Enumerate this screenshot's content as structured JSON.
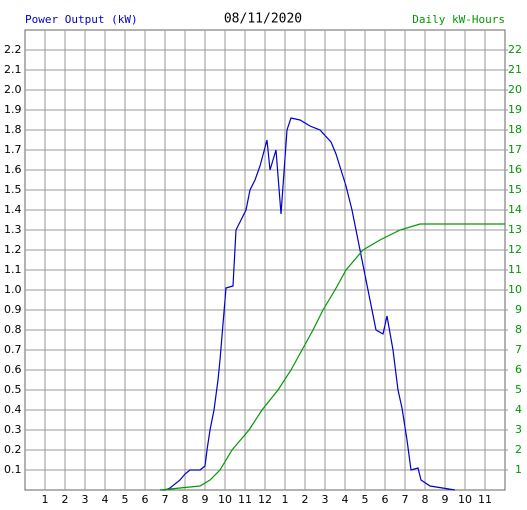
{
  "chart_data": {
    "type": "line",
    "title": "08/11/2020",
    "ylabel": "Power Output (kW)",
    "y2label": "Daily kW-Hours",
    "xlim": [
      0,
      24
    ],
    "xticks": [
      1,
      2,
      3,
      4,
      5,
      6,
      7,
      8,
      9,
      10,
      11,
      12,
      {
        "value": 13,
        "label": "1"
      },
      {
        "value": 14,
        "label": "2"
      },
      {
        "value": 15,
        "label": "3"
      },
      {
        "value": 16,
        "label": "4"
      },
      {
        "value": 17,
        "label": "5"
      },
      {
        "value": 18,
        "label": "6"
      },
      {
        "value": 19,
        "label": "7"
      },
      {
        "value": 20,
        "label": "8"
      },
      {
        "value": 21,
        "label": "9"
      },
      {
        "value": 22,
        "label": "10"
      },
      {
        "value": 23,
        "label": "11"
      }
    ],
    "ylim": [
      0,
      2.3
    ],
    "yticks": [
      0.1,
      0.2,
      0.3,
      0.4,
      0.5,
      0.6,
      0.7,
      0.8,
      0.9,
      {
        "value": 1,
        "label": "1.0"
      },
      1.1,
      1.2,
      1.3,
      1.4,
      1.5,
      1.6,
      1.7,
      1.8,
      1.9,
      {
        "value": 2,
        "label": "2.0"
      },
      2.1,
      2.2
    ],
    "y2lim": [
      0,
      23
    ],
    "y2ticks": [
      1,
      2,
      3,
      4,
      5,
      6,
      7,
      8,
      9,
      10,
      11,
      12,
      13,
      14,
      15,
      16,
      17,
      18,
      19,
      20,
      21,
      22
    ],
    "grid": true,
    "series": [
      {
        "name": "Power Output (kW)",
        "color": "#0000cc",
        "x": [
          6.75,
          7,
          7.25,
          7.75,
          8,
          8.25,
          8.75,
          9,
          9.1,
          9.25,
          9.45,
          9.65,
          9.75,
          10.05,
          10.4,
          10.55,
          10.8,
          11.05,
          11.25,
          11.5,
          11.75,
          12.1,
          12.25,
          12.55,
          12.8,
          13.1,
          13.3,
          13.75,
          14.25,
          14.75,
          15.3,
          15.55,
          15.8,
          16.05,
          16.35,
          16.75,
          17.05,
          17.35,
          17.55,
          17.9,
          18.1,
          18.4,
          18.65,
          18.85,
          19.1,
          19.3,
          19.65,
          19.8,
          20.25,
          21.5
        ],
        "values": [
          0,
          0,
          0.01,
          0.05,
          0.08,
          0.1,
          0.1,
          0.12,
          0.2,
          0.3,
          0.4,
          0.55,
          0.65,
          1.01,
          1.02,
          1.3,
          1.35,
          1.4,
          1.5,
          1.55,
          1.62,
          1.75,
          1.6,
          1.7,
          1.38,
          1.8,
          1.86,
          1.85,
          1.82,
          1.8,
          1.74,
          1.68,
          1.6,
          1.52,
          1.4,
          1.2,
          1.05,
          0.9,
          0.8,
          0.78,
          0.87,
          0.7,
          0.5,
          0.41,
          0.25,
          0.1,
          0.11,
          0.05,
          0.02,
          0
        ]
      },
      {
        "name": "Daily kW-Hours",
        "color": "#009900",
        "axis": "y2",
        "x": [
          6.75,
          7.75,
          8.75,
          9.25,
          9.75,
          10.35,
          11.2,
          11.85,
          12.65,
          13.3,
          13.85,
          14.4,
          14.9,
          15.5,
          16.05,
          16.9,
          17.75,
          18.75,
          19.75,
          24
        ],
        "values": [
          0,
          0.1,
          0.2,
          0.5,
          1,
          2,
          3,
          4,
          5,
          6,
          7,
          8,
          9,
          10,
          11,
          12,
          12.5,
          13,
          13.3,
          13.3
        ]
      }
    ]
  }
}
